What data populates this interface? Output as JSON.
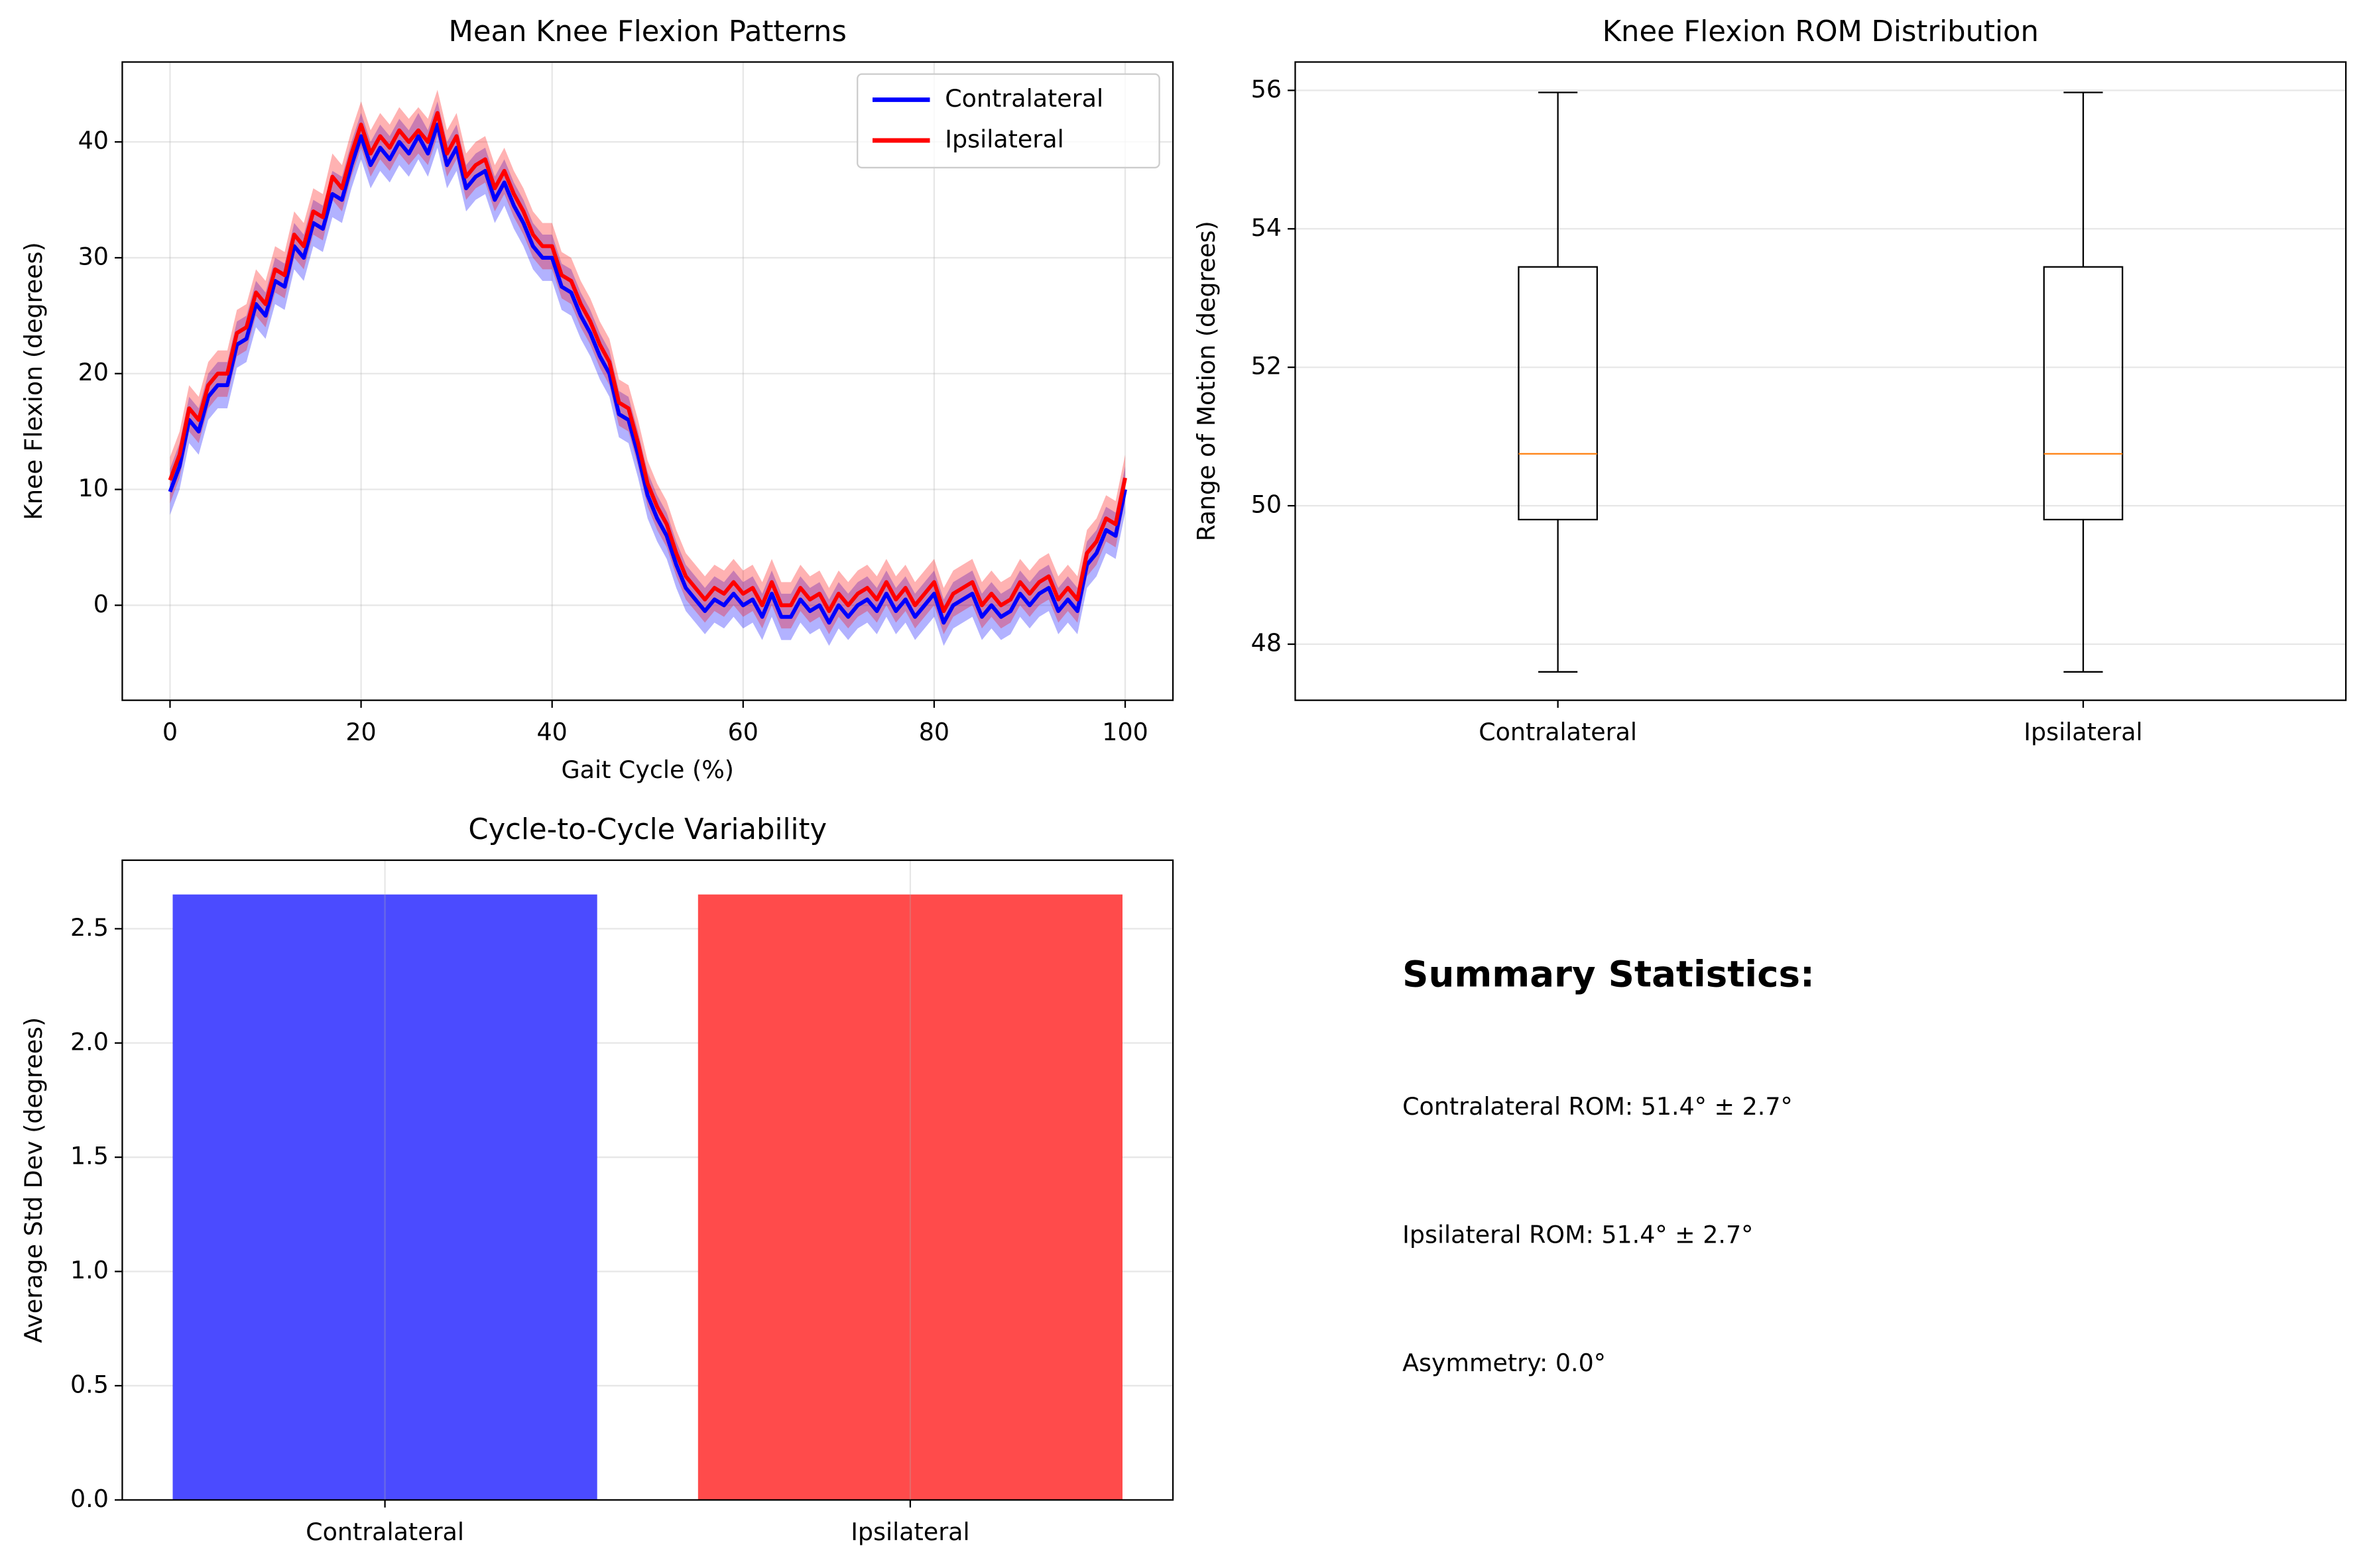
{
  "chart_data": [
    {
      "type": "line",
      "title": "Mean Knee Flexion Patterns",
      "xlabel": "Gait Cycle (%)",
      "ylabel": "Knee Flexion (degrees)",
      "x": [
        0,
        1,
        2,
        3,
        4,
        5,
        6,
        7,
        8,
        9,
        10,
        11,
        12,
        13,
        14,
        15,
        16,
        17,
        18,
        19,
        20,
        21,
        22,
        23,
        24,
        25,
        26,
        27,
        28,
        29,
        30,
        31,
        32,
        33,
        34,
        35,
        36,
        37,
        38,
        39,
        40,
        41,
        42,
        43,
        44,
        45,
        46,
        47,
        48,
        49,
        50,
        51,
        52,
        53,
        54,
        55,
        56,
        57,
        58,
        59,
        60,
        61,
        62,
        63,
        64,
        65,
        66,
        67,
        68,
        69,
        70,
        71,
        72,
        73,
        74,
        75,
        76,
        77,
        78,
        79,
        80,
        81,
        82,
        83,
        84,
        85,
        86,
        87,
        88,
        89,
        90,
        91,
        92,
        93,
        94,
        95,
        96,
        97,
        98,
        99,
        100
      ],
      "series": [
        {
          "name": "Contralateral",
          "color": "#0000ff",
          "band": 2.0,
          "values": [
            9.8,
            12,
            16,
            15,
            18,
            19,
            19,
            22.5,
            23,
            26,
            25,
            28,
            27.5,
            31,
            30,
            33,
            32.5,
            35.5,
            35,
            38,
            40.5,
            38,
            39.5,
            38.5,
            40,
            39,
            40.5,
            39,
            41.5,
            38,
            39.5,
            36,
            37,
            37.5,
            35,
            36.5,
            34.5,
            33,
            31,
            30,
            30,
            27.5,
            27,
            25,
            23.5,
            21.5,
            20,
            16.5,
            16,
            13,
            9.5,
            7.5,
            6,
            3.5,
            1.5,
            0.5,
            -0.5,
            0.5,
            0,
            1,
            0,
            0.5,
            -1,
            1,
            -1,
            -1,
            0.5,
            -0.5,
            0,
            -1.5,
            0,
            -1,
            0,
            0.5,
            -0.5,
            1,
            -0.5,
            0.5,
            -1,
            0,
            1,
            -1.5,
            0,
            0.5,
            1,
            -1,
            0,
            -1,
            -0.5,
            1,
            0,
            1,
            1.5,
            -0.5,
            0.5,
            -0.5,
            3.5,
            4.5,
            6.5,
            6,
            10
          ]
        },
        {
          "name": "Ipsilateral",
          "color": "#ff0000",
          "band": 2.0,
          "values": [
            10.8,
            13,
            17,
            16,
            19,
            20,
            20,
            23.5,
            24,
            27,
            26,
            29,
            28.5,
            32,
            31,
            34,
            33.5,
            37,
            36,
            39,
            41.5,
            39,
            40.5,
            39.5,
            41,
            40,
            41,
            40,
            42.5,
            39,
            40.5,
            37,
            38,
            38.5,
            36,
            37.5,
            35.5,
            34,
            32,
            31,
            31,
            28.5,
            28,
            26,
            24.5,
            22.5,
            21,
            17.5,
            17,
            14,
            10.5,
            8.5,
            7,
            4.5,
            2.5,
            1.5,
            0.5,
            1.5,
            1,
            2,
            1,
            1.5,
            0,
            2,
            0,
            0,
            1.5,
            0.5,
            1,
            -0.5,
            1,
            0,
            1,
            1.5,
            0.5,
            2,
            0.5,
            1.5,
            0,
            1,
            2,
            -0.5,
            1,
            1.5,
            2,
            0,
            1,
            0,
            0.5,
            2,
            1,
            2,
            2.5,
            0.5,
            1.5,
            0.5,
            4.5,
            5.5,
            7.5,
            7,
            11
          ]
        }
      ],
      "xlim": [
        -5,
        105
      ],
      "xticks": [
        0,
        20,
        40,
        60,
        80,
        100
      ],
      "ylim": [
        -8.2,
        46.9
      ],
      "yticks": [
        0,
        10,
        20,
        30,
        40
      ],
      "grid": true,
      "legend": "upper right"
    },
    {
      "type": "box",
      "title": "Knee Flexion ROM Distribution",
      "ylabel": "Range of Motion (degrees)",
      "categories": [
        "Contralateral",
        "Ipsilateral"
      ],
      "boxes": [
        {
          "whislo": 47.6,
          "q1": 49.8,
          "med": 50.75,
          "q3": 53.45,
          "whishi": 55.97
        },
        {
          "whislo": 47.6,
          "q1": 49.8,
          "med": 50.75,
          "q3": 53.45,
          "whishi": 55.97
        }
      ],
      "median_color": "#ff7f0e",
      "ylim": [
        47.19,
        56.41
      ],
      "yticks": [
        48,
        50,
        52,
        54,
        56
      ],
      "grid": true
    },
    {
      "type": "bar",
      "title": "Cycle-to-Cycle Variability",
      "ylabel": "Average Std Dev (degrees)",
      "categories": [
        "Contralateral",
        "Ipsilateral"
      ],
      "values": [
        2.65,
        2.65
      ],
      "colors": [
        "#4b4bff",
        "#ff4b4b"
      ],
      "ylim": [
        0,
        2.8
      ],
      "yticks": [
        {
          "value": 0,
          "label": "0.0"
        },
        0.5,
        {
          "value": 1,
          "label": "1.0"
        },
        1.5,
        {
          "value": 2,
          "label": "2.0"
        },
        2.5
      ],
      "grid": true
    }
  ],
  "summary": {
    "title": "Summary Statistics:",
    "lines": [
      "Contralateral ROM: 51.4° ± 2.7°",
      "Ipsilateral ROM: 51.4° ± 2.7°",
      "Asymmetry: 0.0°"
    ]
  }
}
